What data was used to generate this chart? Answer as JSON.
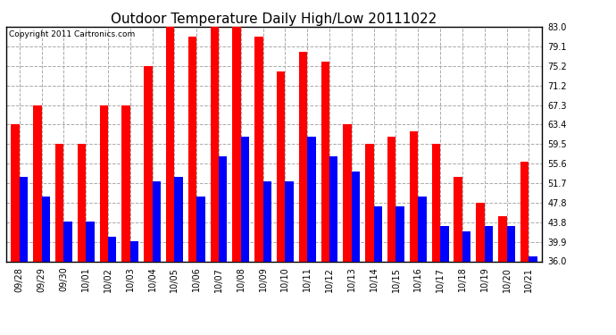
{
  "title": "Outdoor Temperature Daily High/Low 20111022",
  "copyright": "Copyright 2011 Cartronics.com",
  "dates": [
    "09/28",
    "09/29",
    "09/30",
    "10/01",
    "10/02",
    "10/03",
    "10/04",
    "10/05",
    "10/06",
    "10/07",
    "10/08",
    "10/09",
    "10/10",
    "10/11",
    "10/12",
    "10/13",
    "10/14",
    "10/15",
    "10/16",
    "10/17",
    "10/18",
    "10/19",
    "10/20",
    "10/21"
  ],
  "highs": [
    63.4,
    67.3,
    59.5,
    59.5,
    67.3,
    67.3,
    75.2,
    83.0,
    81.0,
    83.0,
    83.0,
    81.0,
    74.0,
    78.0,
    76.0,
    63.4,
    59.5,
    61.0,
    62.0,
    59.5,
    53.0,
    47.8,
    45.0,
    56.0
  ],
  "lows": [
    53.0,
    49.0,
    44.0,
    44.0,
    41.0,
    40.0,
    52.0,
    53.0,
    49.0,
    57.0,
    61.0,
    52.0,
    52.0,
    61.0,
    57.0,
    54.0,
    47.0,
    47.0,
    49.0,
    43.0,
    42.0,
    43.0,
    43.0,
    37.0
  ],
  "high_color": "#ff0000",
  "low_color": "#0000ff",
  "bg_color": "#ffffff",
  "grid_color": "#aaaaaa",
  "ylim_min": 36.0,
  "ylim_max": 83.0,
  "yticks": [
    36.0,
    39.9,
    43.8,
    47.8,
    51.7,
    55.6,
    59.5,
    63.4,
    67.3,
    71.2,
    75.2,
    79.1,
    83.0
  ],
  "bar_width": 0.38,
  "title_fontsize": 11,
  "tick_fontsize": 7,
  "copyright_fontsize": 6.5
}
